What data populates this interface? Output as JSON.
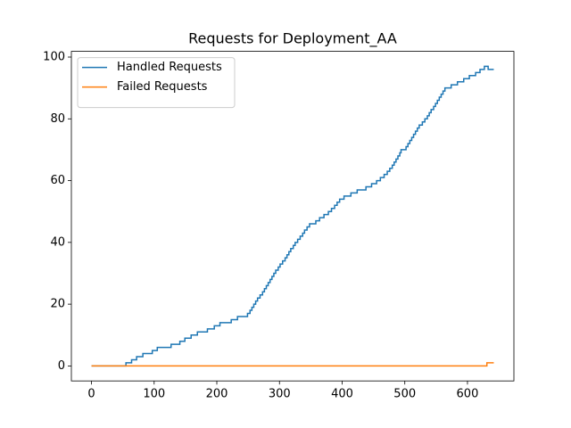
{
  "chart_data": {
    "type": "line",
    "title": "Requests for Deployment_AA",
    "drawstyle": "steps-post",
    "grid": false,
    "legend": "upper left",
    "xlim": [
      -32.1,
      674.1
    ],
    "xticks": [
      0,
      100,
      200,
      300,
      400,
      500,
      600
    ],
    "ylim": [
      -4.85,
      101.85
    ],
    "yticks": [
      0,
      20,
      40,
      60,
      80,
      100
    ],
    "series": [
      {
        "name": "Handled Requests",
        "color": "#1f77b4",
        "x": [
          0,
          55,
          64,
          72,
          82,
          97,
          105,
          127,
          141,
          149,
          159,
          169,
          185,
          196,
          205,
          223,
          233,
          249,
          253,
          256,
          259,
          262,
          265,
          269,
          273,
          276,
          279,
          282,
          285,
          288,
          291,
          294,
          298,
          301,
          305,
          309,
          312,
          315,
          318,
          322,
          325,
          329,
          333,
          337,
          340,
          344,
          348,
          358,
          364,
          371,
          378,
          383,
          388,
          392,
          396,
          403,
          414,
          424,
          438,
          447,
          455,
          461,
          467,
          472,
          476,
          480,
          483,
          486,
          489,
          492,
          494,
          502,
          505,
          508,
          511,
          514,
          517,
          520,
          523,
          528,
          532,
          536,
          539,
          542,
          546,
          549,
          552,
          555,
          558,
          561,
          564,
          574,
          584,
          594,
          603,
          613,
          620,
          627,
          633,
          642
        ],
        "values": [
          0,
          1,
          2,
          3,
          4,
          5,
          6,
          7,
          8,
          9,
          10,
          11,
          12,
          13,
          14,
          15,
          16,
          17,
          18,
          19,
          20,
          21,
          22,
          23,
          24,
          25,
          26,
          27,
          28,
          29,
          30,
          31,
          32,
          33,
          34,
          35,
          36,
          37,
          38,
          39,
          40,
          41,
          42,
          43,
          44,
          45,
          46,
          47,
          48,
          49,
          50,
          51,
          52,
          53,
          54,
          55,
          56,
          57,
          58,
          59,
          60,
          61,
          62,
          63,
          64,
          65,
          66,
          67,
          68,
          69,
          70,
          71,
          72,
          73,
          74,
          75,
          76,
          77,
          78,
          79,
          80,
          81,
          82,
          83,
          84,
          85,
          86,
          87,
          88,
          89,
          90,
          91,
          92,
          93,
          94,
          95,
          96,
          97,
          96,
          96
        ]
      },
      {
        "name": "Failed Requests",
        "color": "#ff7f0e",
        "x": [
          0,
          631,
          642
        ],
        "values": [
          0,
          1,
          1
        ]
      }
    ]
  }
}
